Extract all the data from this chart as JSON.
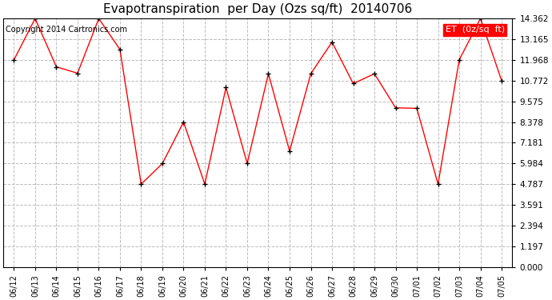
{
  "title": "Evapotranspiration  per Day (Ozs sq/ft)  20140706",
  "copyright_text": "Copyright 2014 Cartronics.com",
  "legend_label": "ET  (0z/sq  ft)",
  "dates": [
    "06/12",
    "06/13",
    "06/14",
    "06/15",
    "06/16",
    "06/17",
    "06/18",
    "06/19",
    "06/20",
    "06/21",
    "06/22",
    "06/23",
    "06/24",
    "06/25",
    "06/26",
    "06/27",
    "06/28",
    "06/29",
    "06/30",
    "07/01",
    "07/02",
    "07/03",
    "07/04",
    "07/05"
  ],
  "values": [
    11.97,
    14.36,
    11.57,
    11.2,
    14.36,
    12.57,
    4.79,
    5.98,
    8.38,
    4.79,
    10.37,
    5.98,
    11.17,
    6.7,
    11.17,
    13.0,
    10.6,
    11.17,
    9.2,
    9.17,
    4.79,
    11.97,
    14.36,
    10.77
  ],
  "ylim": [
    0.0,
    14.362
  ],
  "yticks": [
    0.0,
    1.197,
    2.394,
    3.591,
    4.787,
    5.984,
    7.181,
    8.378,
    9.575,
    10.772,
    11.968,
    13.165,
    14.362
  ],
  "line_color": "red",
  "marker_color": "black",
  "grid_color": "#bbbbbb",
  "background_color": "white",
  "title_fontsize": 11,
  "copyright_fontsize": 7,
  "legend_bg_color": "red",
  "legend_text_color": "white",
  "tick_fontsize": 7.5,
  "xtick_fontsize": 7
}
